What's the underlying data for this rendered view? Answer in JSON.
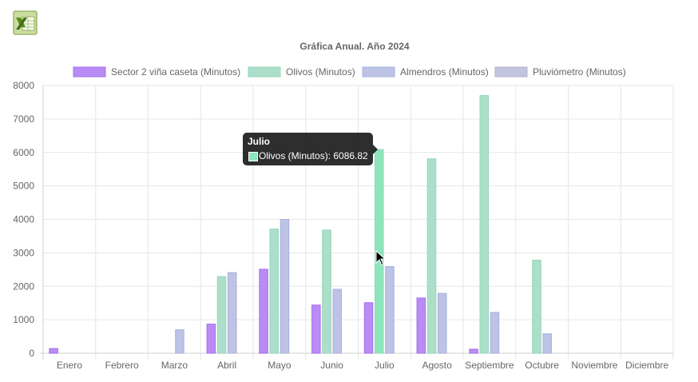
{
  "toolbar": {
    "export_icon": "excel-export-icon"
  },
  "colors": {
    "sector": "#b98cf5",
    "olivos": "#acdfc9",
    "olivos_hover": "#8ce6bc",
    "almendros": "#bcc3e6",
    "pluviometro": "#c3c5dd",
    "grid": "#e6e6e6",
    "axis_text": "#666666"
  },
  "tooltip": {
    "title": "Julio",
    "line": "Olivos (Minutos): 6086.82"
  },
  "chart_data": {
    "type": "bar",
    "title": "Gráfica Anual. Año 2024",
    "xlabel": "",
    "ylabel": "",
    "ylim": [
      0,
      8000
    ],
    "yticks": [
      0,
      1000,
      2000,
      3000,
      4000,
      5000,
      6000,
      7000,
      8000
    ],
    "grid": true,
    "legend_position": "top",
    "categories": [
      "Enero",
      "Febrero",
      "Marzo",
      "Abril",
      "Mayo",
      "Junio",
      "Julio",
      "Agosto",
      "Septiembre",
      "Octubre",
      "Noviembre",
      "Diciembre"
    ],
    "series": [
      {
        "name": "Sector 2 viña caseta (Minutos)",
        "values": [
          140,
          0,
          0,
          870,
          2510,
          1440,
          1510,
          1650,
          120,
          0,
          0,
          0
        ]
      },
      {
        "name": "Olivos (Minutos)",
        "values": [
          0,
          0,
          0,
          2290,
          3710,
          3680,
          6086.82,
          5810,
          7700,
          2780,
          0,
          0
        ]
      },
      {
        "name": "Almendros (Minutos)",
        "values": [
          0,
          0,
          700,
          2410,
          4000,
          1910,
          2590,
          1790,
          1220,
          580,
          0,
          0
        ]
      },
      {
        "name": "Pluviómetro  (Minutos)",
        "values": [
          0,
          0,
          0,
          0,
          0,
          0,
          0,
          0,
          0,
          0,
          0,
          0
        ]
      }
    ]
  }
}
